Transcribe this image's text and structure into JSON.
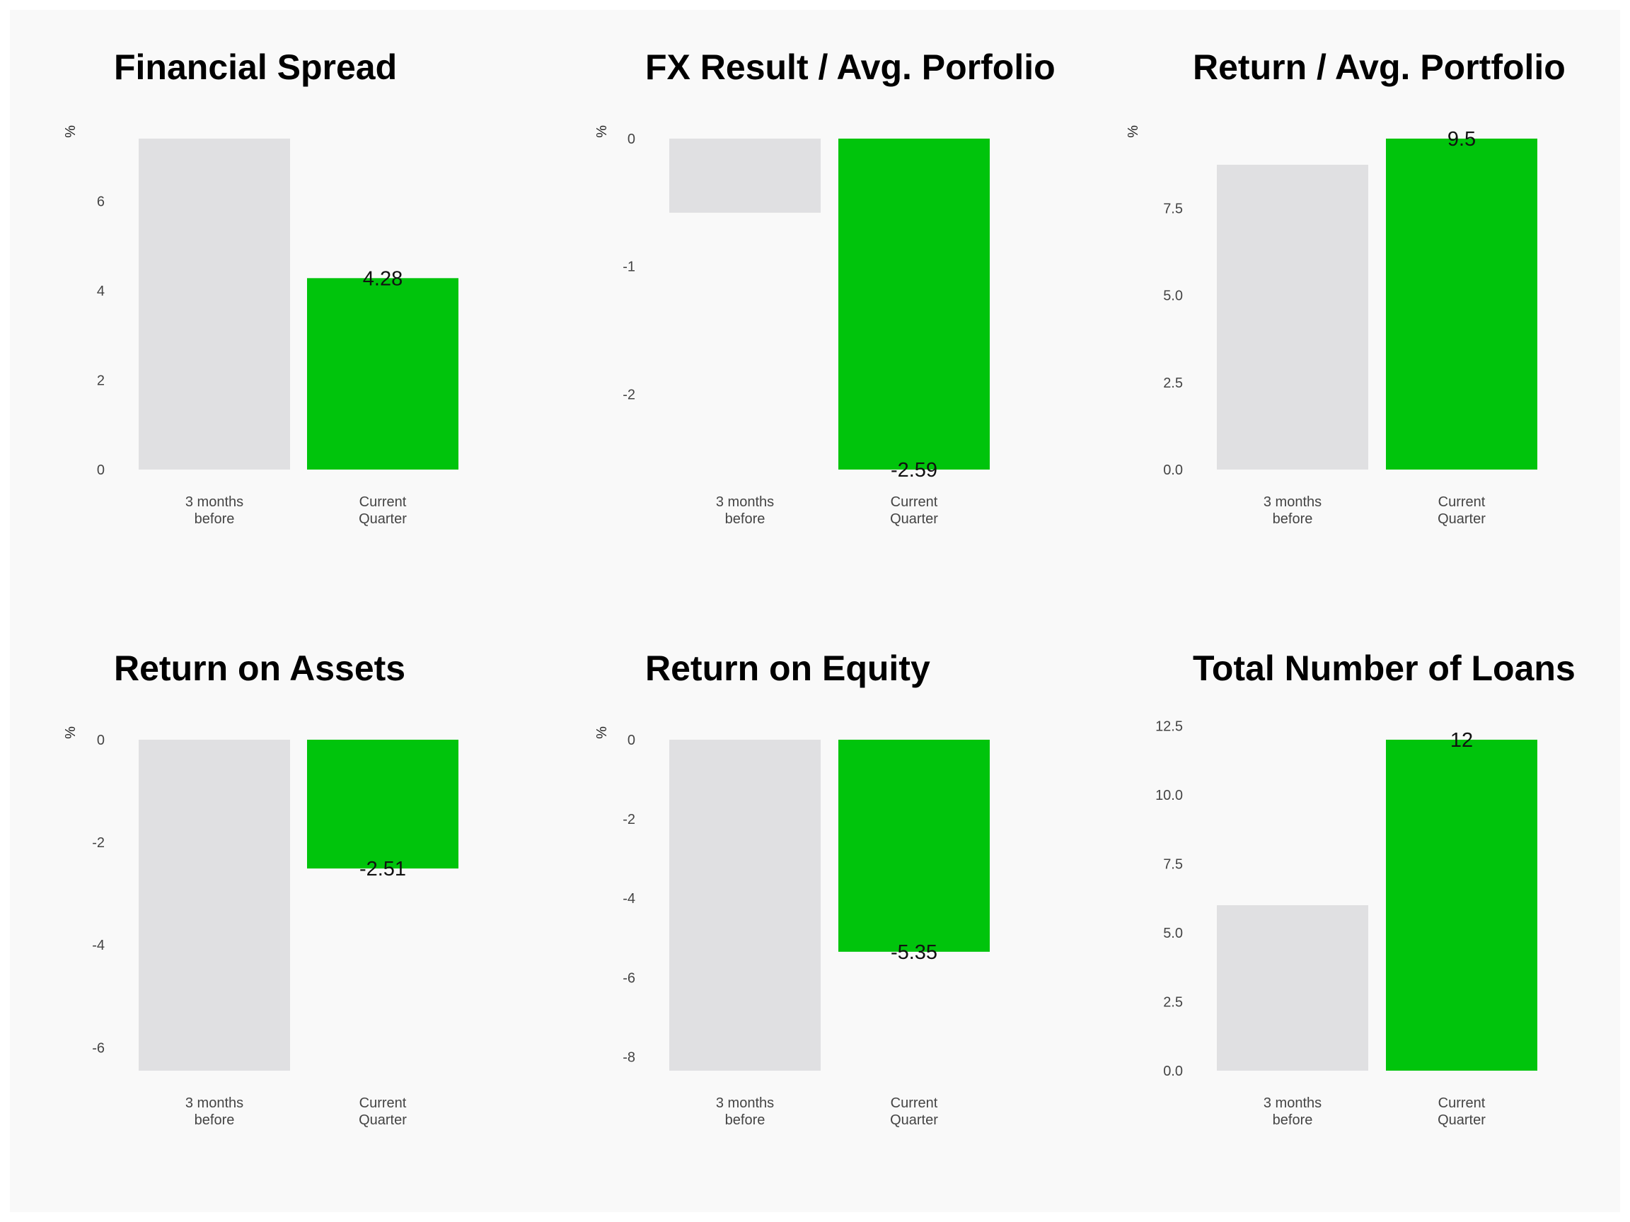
{
  "colors": {
    "background": "#f9f9f9",
    "previous": "#e0e0e2",
    "current": "#00c40c"
  },
  "categories": [
    [
      "3 months",
      "before"
    ],
    [
      "Current",
      "Quarter"
    ]
  ],
  "chart_data": [
    {
      "type": "bar",
      "title": "Financial Spread",
      "ylabel": "%",
      "categories": [
        "3 months before",
        "Current Quarter"
      ],
      "values": [
        7.4,
        4.28
      ],
      "labels": [
        "",
        "4.28"
      ],
      "ylim": [
        0,
        7.4
      ],
      "ticks": [
        0,
        2,
        4,
        6
      ],
      "tick_labels": [
        "0",
        "2",
        "4",
        "6"
      ],
      "grid": false
    },
    {
      "type": "bar",
      "title": "FX Result / Avg. Porfolio",
      "ylabel": "%",
      "categories": [
        "3 months before",
        "Current Quarter"
      ],
      "values": [
        -0.58,
        -2.59
      ],
      "labels": [
        "",
        "-2.59"
      ],
      "ylim": [
        -2.59,
        0
      ],
      "ticks": [
        0,
        -1,
        -2
      ],
      "tick_labels": [
        "0",
        "-1",
        "-2"
      ],
      "grid": false
    },
    {
      "type": "bar",
      "title": "Return / Avg. Portfolio",
      "ylabel": "%",
      "categories": [
        "3 months before",
        "Current Quarter"
      ],
      "values": [
        8.75,
        9.5
      ],
      "labels": [
        "",
        "9.5"
      ],
      "ylim": [
        0,
        9.5
      ],
      "ticks": [
        0,
        2.5,
        5,
        7.5
      ],
      "tick_labels": [
        "0.0",
        "2.5",
        "5.0",
        "7.5"
      ],
      "grid": false
    },
    {
      "type": "bar",
      "title": "Return on Assets",
      "ylabel": "%",
      "categories": [
        "3 months before",
        "Current Quarter"
      ],
      "values": [
        -6.45,
        -2.51
      ],
      "labels": [
        "",
        "-2.51"
      ],
      "ylim": [
        -6.45,
        0
      ],
      "ticks": [
        0,
        -2,
        -4,
        -6
      ],
      "tick_labels": [
        "0",
        "-2",
        "-4",
        "-6"
      ],
      "grid": false
    },
    {
      "type": "bar",
      "title": "Return on Equity",
      "ylabel": "%",
      "categories": [
        "3 months before",
        "Current Quarter"
      ],
      "values": [
        -8.35,
        -5.35
      ],
      "labels": [
        "",
        "-5.35"
      ],
      "ylim": [
        -8.35,
        0
      ],
      "ticks": [
        0,
        -2,
        -4,
        -6,
        -8
      ],
      "tick_labels": [
        "0",
        "-2",
        "-4",
        "-6",
        "-8"
      ],
      "grid": false
    },
    {
      "type": "bar",
      "title": "Total Number of Loans",
      "ylabel": "",
      "categories": [
        "3 months before",
        "Current Quarter"
      ],
      "values": [
        6,
        12
      ],
      "labels": [
        "",
        "12"
      ],
      "ylim": [
        0,
        12
      ],
      "ticks": [
        0,
        2.5,
        5,
        7.5,
        10,
        12.5
      ],
      "tick_labels": [
        "0.0",
        "2.5",
        "5.0",
        "7.5",
        "10.0",
        "12.5"
      ],
      "grid": false
    }
  ]
}
